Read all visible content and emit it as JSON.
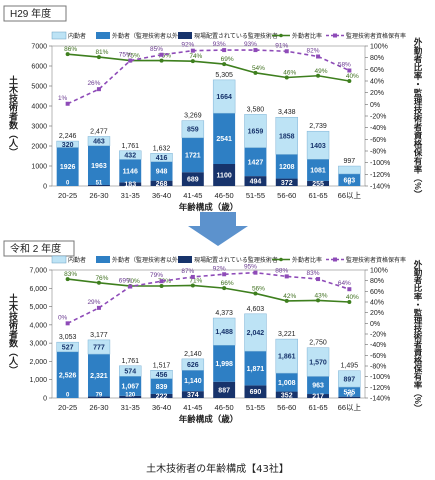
{
  "page": {
    "caption": "土木技術者の年齢構成【43社】"
  },
  "legend_labels": {
    "naikin": "内勤者",
    "gaikin": "外勤者（監理技術者以外）",
    "kanri": "現場配置されている監理技術者",
    "ratio_gaikin": "外勤者比率",
    "ratio_kanri": "監理技術者資格保有率"
  },
  "colors": {
    "naikin": "#bde3f5",
    "gaikin": "#2e7fc4",
    "kanri": "#17336b",
    "line_gaikin": "#3e7f1e",
    "line_kanri": "#8e4bb8",
    "arrow": "#4a86c8"
  },
  "chart_data": [
    {
      "id": "h29",
      "type": "bar",
      "title": "H29 年度",
      "xlabel": "年齢構成（歳）",
      "ylabel": "土木技術者数（人）",
      "y2label": "外勤者比率・監理技術者資格保有率（%）",
      "ylim": [
        0,
        7000
      ],
      "yticks": [
        "0",
        "1000",
        "2000",
        "3000",
        "4000",
        "5000",
        "6000",
        "7000"
      ],
      "y2lim": [
        -140,
        100
      ],
      "y2ticks": [
        "-140%",
        "-120%",
        "-100%",
        "-80%",
        "-60%",
        "-40%",
        "-20%",
        "0%",
        "20%",
        "40%",
        "60%",
        "80%",
        "100%"
      ],
      "categories": [
        "20-25",
        "26-30",
        "31-35",
        "36-40",
        "41-45",
        "46-50",
        "51-55",
        "56-60",
        "61-65",
        "66以上"
      ],
      "stack_values": {
        "kanri": [
          0,
          51,
          183,
          268,
          689,
          1100,
          494,
          372,
          255,
          0
        ],
        "gaikin": [
          1926,
          1963,
          1146,
          948,
          1721,
          2541,
          1427,
          1208,
          1081,
          603
        ],
        "naikin": [
          320,
          463,
          432,
          416,
          859,
          1664,
          1659,
          1858,
          1403,
          394
        ]
      },
      "totals": [
        2246,
        2477,
        1761,
        1632,
        3269,
        5305,
        3580,
        3438,
        2739,
        997
      ],
      "total_labels": [
        "2,246",
        "2,477",
        "1,761",
        "1,632",
        "3,269",
        "5,305",
        "3,580",
        "3,438",
        "2,739",
        "997"
      ],
      "kanri_labels": [
        "0",
        "51",
        "183",
        "268",
        "689",
        "1100",
        "494",
        "372",
        "255",
        "0"
      ],
      "gaikin_labels": [
        "1926",
        "1963",
        "1146",
        "948",
        "1721",
        "2541",
        "1427",
        "1208",
        "1081",
        "603"
      ],
      "naikin_labels": [
        "320",
        "463",
        "432",
        "416",
        "859",
        "1664",
        "1659",
        "1858",
        "1403",
        ""
      ],
      "ratio_gaikin": [
        86,
        81,
        75,
        75,
        74,
        69,
        54,
        46,
        49,
        40
      ],
      "ratio_gaikin_labels": [
        "86%",
        "81%",
        "75%",
        "75%",
        "74%",
        "69%",
        "54%",
        "46%",
        "49%",
        "40%"
      ],
      "ratio_kanri": [
        1,
        26,
        75,
        85,
        92,
        93,
        93,
        91,
        82,
        58
      ],
      "ratio_kanri_labels": [
        "1%",
        "26%",
        "75%",
        "85%",
        "92%",
        "93%",
        "93%",
        "91%",
        "82%",
        "58%"
      ]
    },
    {
      "id": "r2",
      "type": "bar",
      "title": "令和 2 年度",
      "xlabel": "年齢構成（歳）",
      "ylabel": "土木技術者数（人）",
      "y2label": "外勤者比率・監理技術者資格保有率（%）",
      "ylim": [
        0,
        7000
      ],
      "yticks": [
        "0",
        "1,000",
        "2,000",
        "3,000",
        "4,000",
        "5,000",
        "6,000",
        "7,000"
      ],
      "y2lim": [
        -140,
        100
      ],
      "y2ticks": [
        "-140%",
        "-120%",
        "-100%",
        "-80%",
        "-60%",
        "-40%",
        "-20%",
        "0%",
        "20%",
        "40%",
        "60%",
        "80%",
        "100%"
      ],
      "categories": [
        "20-25",
        "26-30",
        "31-35",
        "36-40",
        "41-45",
        "46-50",
        "51-55",
        "56-60",
        "61-65",
        "66以上"
      ],
      "stack_values": {
        "kanri": [
          0,
          79,
          120,
          222,
          374,
          887,
          690,
          352,
          217,
          73
        ],
        "gaikin": [
          2526,
          2321,
          1067,
          839,
          1140,
          1998,
          1871,
          1008,
          963,
          525
        ],
        "naikin": [
          527,
          777,
          574,
          456,
          626,
          1488,
          2042,
          1861,
          1570,
          897
        ]
      },
      "totals": [
        3053,
        3177,
        1761,
        1517,
        2140,
        4373,
        4603,
        3221,
        2750,
        1495
      ],
      "total_labels": [
        "3,053",
        "3,177",
        "1,761",
        "1,517",
        "2,140",
        "4,373",
        "4,603",
        "3,221",
        "2,750",
        "1,495"
      ],
      "kanri_labels": [
        "0",
        "79",
        "120",
        "222",
        "374",
        "887",
        "690",
        "352",
        "217",
        "73"
      ],
      "gaikin_labels": [
        "2,526",
        "2,321",
        "1,067",
        "839",
        "1,140",
        "1,998",
        "1,871",
        "1,008",
        "963",
        "525"
      ],
      "naikin_labels": [
        "527",
        "777",
        "574",
        "456",
        "626",
        "1,488",
        "2,042",
        "1,861",
        "1,570",
        "897"
      ],
      "ratio_gaikin": [
        83,
        76,
        70,
        70,
        71,
        66,
        56,
        42,
        43,
        40
      ],
      "ratio_gaikin_labels": [
        "83%",
        "76%",
        "70%",
        "70%",
        "71%",
        "66%",
        "56%",
        "42%",
        "43%",
        "40%"
      ],
      "ratio_kanri": [
        0,
        29,
        69,
        79,
        87,
        92,
        95,
        88,
        83,
        64
      ],
      "ratio_kanri_labels": [
        "0%",
        "29%",
        "69%",
        "79%",
        "87%",
        "92%",
        "95%",
        "88%",
        "83%",
        "64%"
      ]
    }
  ]
}
